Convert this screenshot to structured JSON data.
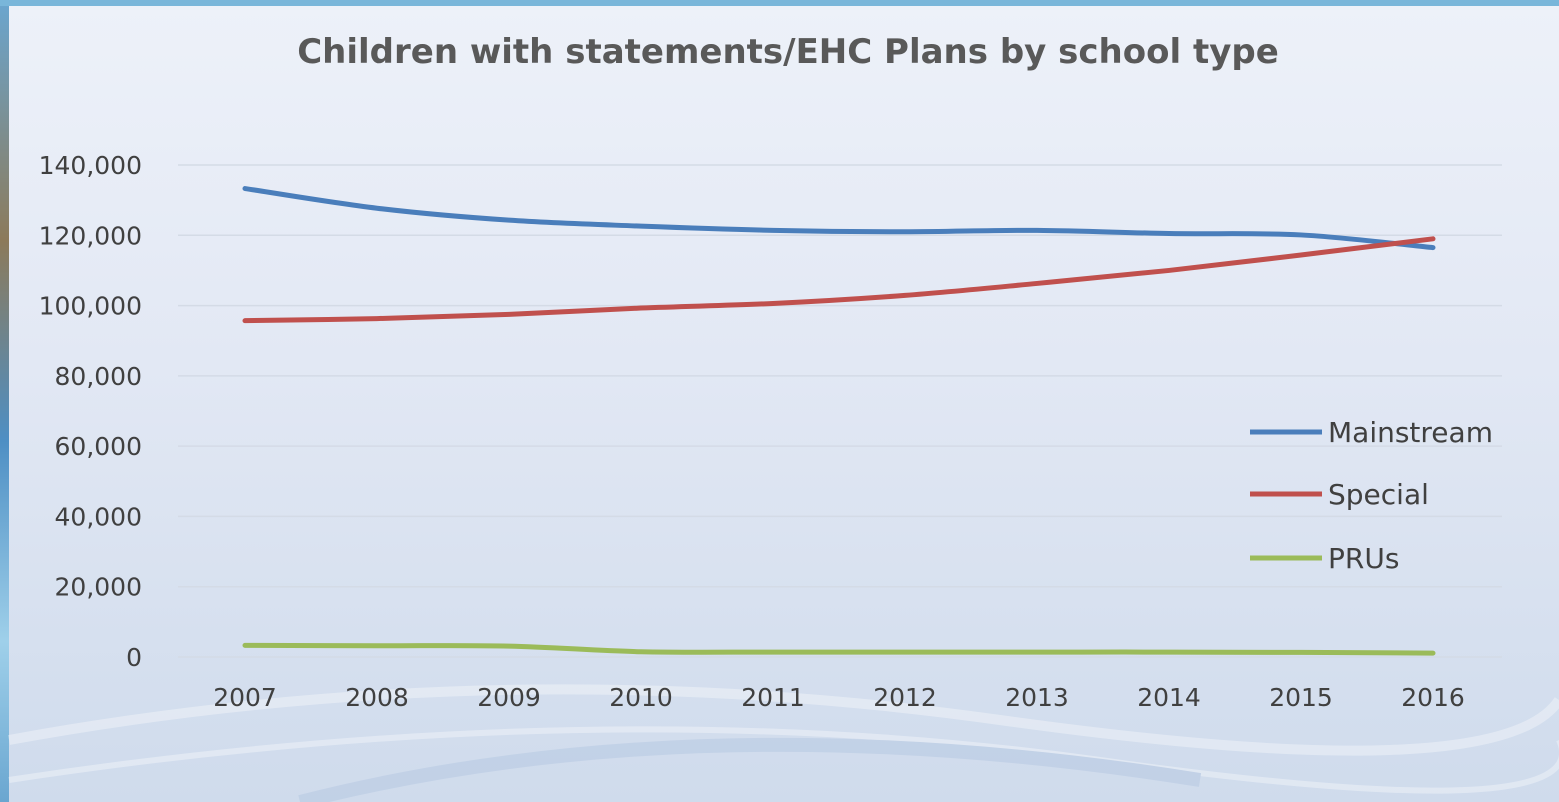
{
  "chart_data": {
    "type": "line",
    "title": "Children with statements/EHC Plans by school type",
    "xlabel": "",
    "ylabel": "",
    "categories": [
      "2007",
      "2008",
      "2009",
      "2010",
      "2011",
      "2012",
      "2013",
      "2014",
      "2015",
      "2016"
    ],
    "ylim": [
      0,
      140000
    ],
    "yticks": [
      0,
      20000,
      40000,
      60000,
      80000,
      100000,
      120000,
      140000
    ],
    "ytick_labels": [
      "0",
      "20,000",
      "40,000",
      "60,000",
      "80,000",
      "100,000",
      "120,000",
      "140,000"
    ],
    "grid": true,
    "legend_position": "right",
    "series": [
      {
        "name": "Mainstream",
        "color": "#4a7ebb",
        "values": [
          133300,
          127700,
          124300,
          122600,
          121400,
          121000,
          121400,
          120500,
          120100,
          116500
        ]
      },
      {
        "name": "Special",
        "color": "#c0504d",
        "values": [
          95700,
          96300,
          97500,
          99300,
          100600,
          102900,
          106300,
          110000,
          114400,
          119000
        ]
      },
      {
        "name": "PRUs",
        "color": "#9bbb59",
        "values": [
          3300,
          3200,
          3100,
          1500,
          1400,
          1400,
          1400,
          1400,
          1300,
          1100
        ]
      }
    ]
  }
}
